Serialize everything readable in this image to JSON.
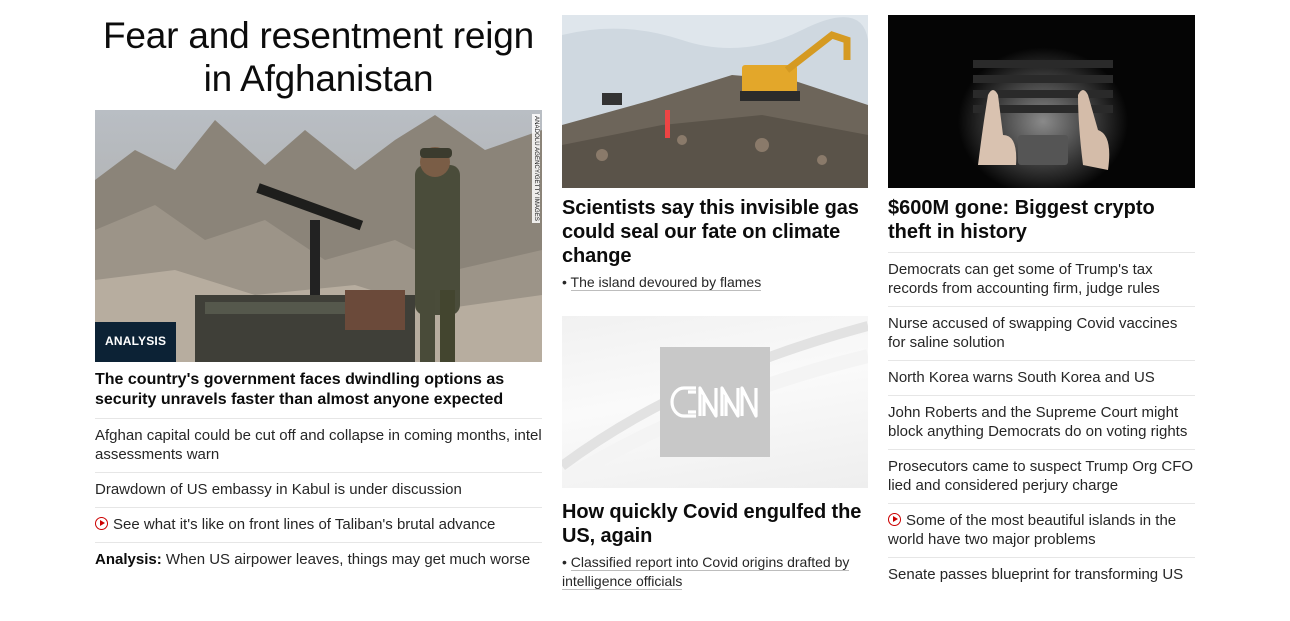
{
  "left": {
    "hero_title": "Fear and resentment reign in Afghanistan",
    "image_credit": "ANADOLU AGENCY/GETTY IMAGES",
    "badge": "ANALYSIS",
    "lead_headline": "The country's government faces dwindling options as security unravels faster than almost anyone expected",
    "links": [
      {
        "text": "Afghan capital could be cut off and collapse in coming months, intel assessments warn"
      },
      {
        "text": "Drawdown of US embassy in Kabul is under discussion"
      },
      {
        "text": "See what it's like on front lines of Taliban's brutal advance",
        "video": true
      },
      {
        "prefix": "Analysis:",
        "text": " When US airpower leaves, things may get much worse"
      }
    ]
  },
  "middle": {
    "card1": {
      "title": "Scientists say this invisible gas could seal our fate on climate change",
      "sub_link": "The island devoured by flames"
    },
    "card2": {
      "logo_text": "CNN",
      "title": "How quickly Covid engulfed the US, again",
      "sub_link": "Classified report into Covid origins drafted by intelligence officials"
    }
  },
  "right": {
    "title": "$600M gone: Biggest crypto theft in history",
    "links": [
      {
        "text": "Democrats can get some of Trump's tax records from accounting firm, judge rules"
      },
      {
        "text": "Nurse accused of swapping Covid vaccines for saline solution"
      },
      {
        "text": "North Korea warns South Korea and US"
      },
      {
        "text": "John Roberts and the Supreme Court might block anything Democrats do on voting rights"
      },
      {
        "text": "Prosecutors came to suspect Trump Org CFO lied and considered perjury charge"
      },
      {
        "text": "Some of the most beautiful islands in the world have two major problems",
        "video": true
      },
      {
        "text": "Senate passes blueprint for transforming US"
      }
    ]
  },
  "colors": {
    "badge_bg": "#0c2235",
    "video_icon": "#cc0000",
    "divider": "#e6e6e6"
  }
}
